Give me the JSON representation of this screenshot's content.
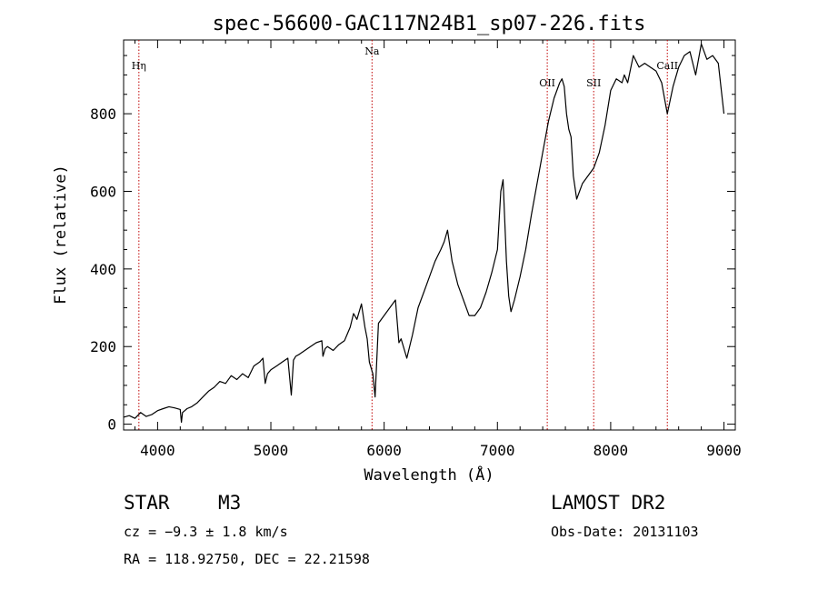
{
  "chart_data": {
    "type": "line",
    "title": "spec-56600-GAC117N24B1_sp07-226.fits",
    "xlabel": "Wavelength (Å)",
    "ylabel": "Flux (relative)",
    "xlim": [
      3700,
      9100
    ],
    "ylim": [
      -15,
      990
    ],
    "xticks": [
      4000,
      5000,
      6000,
      7000,
      8000,
      9000
    ],
    "yticks": [
      0,
      200,
      400,
      600,
      800
    ],
    "series": [
      {
        "x": [
          3700,
          3750,
          3800,
          3850,
          3900,
          3950,
          4000,
          4050,
          4100,
          4150,
          4200,
          4210,
          4220,
          4240,
          4260,
          4300,
          4350,
          4400,
          4450,
          4500,
          4550,
          4600,
          4650,
          4700,
          4750,
          4800,
          4850,
          4900,
          4930,
          4950,
          4970,
          5000,
          5050,
          5100,
          5150,
          5180,
          5200,
          5220,
          5250,
          5300,
          5350,
          5400,
          5450,
          5460,
          5480,
          5500,
          5550,
          5600,
          5650,
          5700,
          5730,
          5760,
          5800,
          5830,
          5850,
          5870,
          5900,
          5920,
          5950,
          6000,
          6050,
          6100,
          6130,
          6150,
          6200,
          6250,
          6300,
          6350,
          6400,
          6450,
          6500,
          6530,
          6560,
          6600,
          6650,
          6700,
          6750,
          6800,
          6850,
          6900,
          6950,
          7000,
          7030,
          7050,
          7080,
          7100,
          7120,
          7150,
          7200,
          7250,
          7300,
          7350,
          7400,
          7450,
          7500,
          7550,
          7570,
          7590,
          7610,
          7630,
          7650,
          7670,
          7700,
          7750,
          7800,
          7850,
          7900,
          7950,
          8000,
          8050,
          8100,
          8120,
          8150,
          8200,
          8250,
          8300,
          8350,
          8400,
          8450,
          8500,
          8550,
          8600,
          8650,
          8700,
          8750,
          8800,
          8850,
          8900,
          8950,
          9000
        ],
        "values": [
          18,
          22,
          15,
          30,
          20,
          25,
          35,
          40,
          45,
          42,
          38,
          5,
          30,
          35,
          40,
          45,
          55,
          70,
          85,
          95,
          110,
          105,
          125,
          115,
          130,
          120,
          150,
          160,
          170,
          105,
          130,
          140,
          150,
          160,
          170,
          75,
          165,
          175,
          180,
          190,
          200,
          210,
          215,
          175,
          195,
          200,
          190,
          205,
          215,
          250,
          285,
          270,
          310,
          250,
          220,
          160,
          130,
          70,
          260,
          280,
          300,
          320,
          210,
          220,
          170,
          230,
          300,
          340,
          380,
          420,
          450,
          470,
          500,
          420,
          360,
          320,
          280,
          280,
          300,
          340,
          390,
          450,
          600,
          630,
          420,
          330,
          290,
          320,
          380,
          450,
          540,
          620,
          700,
          780,
          840,
          880,
          890,
          870,
          800,
          760,
          740,
          640,
          580,
          620,
          640,
          660,
          700,
          770,
          860,
          890,
          880,
          900,
          880,
          950,
          920,
          930,
          920,
          910,
          880,
          800,
          870,
          920,
          950,
          960,
          900,
          980,
          940,
          950,
          930,
          800
        ]
      }
    ],
    "emission_lines": [
      {
        "label": "Hη",
        "x": 3835
      },
      {
        "label": "Na",
        "x": 5893
      },
      {
        "label": "OII",
        "x": 7440
      },
      {
        "label": "SII",
        "x": 7850
      },
      {
        "label": "CaII",
        "x": 8500
      }
    ],
    "line_color": "#000000",
    "marker_color": "#c00000",
    "grid": false
  },
  "info": {
    "class_label": "STAR",
    "subclass": "M3",
    "survey": "LAMOST DR2",
    "cz": "cz = −9.3 ± 1.8 km/s",
    "obs_date": "Obs-Date: 20131103",
    "coords": "RA = 118.92750, DEC =  22.21598"
  }
}
